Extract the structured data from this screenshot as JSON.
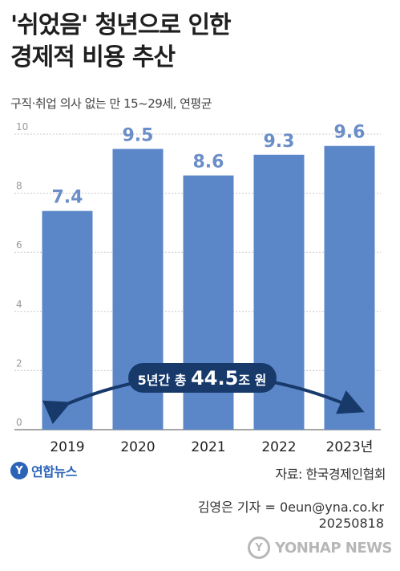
{
  "title_lines": [
    "'쉬었음' 청년으로 인한",
    "경제적 비용 추산"
  ],
  "subtitle": "구직·취업 의사 없는 만 15~29세, 연평균",
  "chart_data": {
    "type": "bar",
    "categories": [
      "2019",
      "2020",
      "2021",
      "2022",
      "2023년"
    ],
    "values": [
      7.4,
      9.5,
      8.6,
      9.3,
      9.6
    ],
    "data_labels": [
      "7.4",
      "9.5",
      "8.6",
      "9.3",
      "9.6"
    ],
    "y_ticks": [
      "0",
      "2",
      "4",
      "6",
      "8",
      "10"
    ],
    "ylim": [
      0,
      10
    ],
    "grid": true,
    "bar_color": "#5b87c9",
    "label_color": "#6b8ec8",
    "annotation": {
      "prefix": "5년간 총 ",
      "value": "44.5",
      "suffix": "조 원",
      "color": "#173a6b"
    }
  },
  "source": "자료: 한국경제인협회",
  "logo_text": "연합뉴스",
  "reporter": "김영은 기자 = 0eun@yna.co.kr",
  "date": "20250818",
  "watermark": "YONHAP NEWS"
}
